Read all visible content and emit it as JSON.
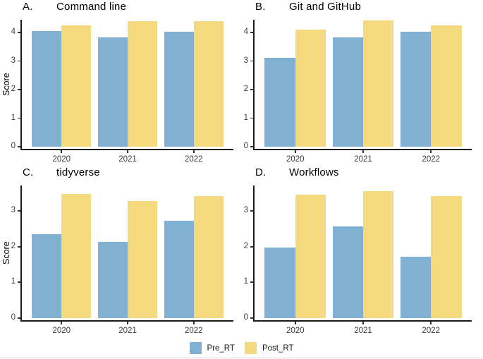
{
  "figure": {
    "colors": {
      "pre": "#80B1D3",
      "post": "#F4D97E",
      "axis": "#1A1A1A",
      "tick_text": "#3C3C3C"
    }
  },
  "chart_data": [
    {
      "type": "bar",
      "panel_label": "A.",
      "title": "Command line",
      "ylabel": "Score",
      "categories": [
        "2020",
        "2021",
        "2022"
      ],
      "series": [
        {
          "name": "Pre_RT",
          "values": [
            4.05,
            3.84,
            4.04
          ]
        },
        {
          "name": "Post_RT",
          "values": [
            4.25,
            4.41,
            4.41
          ]
        }
      ],
      "yticks": [
        0,
        1,
        2,
        3,
        4
      ],
      "ylim": [
        0,
        4.45
      ],
      "grid": false,
      "legend_position": "bottom-shared"
    },
    {
      "type": "bar",
      "panel_label": "B.",
      "title": "Git and GitHub",
      "ylabel": "",
      "categories": [
        "2020",
        "2021",
        "2022"
      ],
      "series": [
        {
          "name": "Pre_RT",
          "values": [
            3.12,
            3.84,
            4.04
          ]
        },
        {
          "name": "Post_RT",
          "values": [
            4.1,
            4.42,
            4.26
          ]
        }
      ],
      "yticks": [
        0,
        1,
        2,
        3,
        4
      ],
      "ylim": [
        0,
        4.45
      ],
      "grid": false,
      "legend_position": "bottom-shared"
    },
    {
      "type": "bar",
      "panel_label": "C.",
      "title": "tidyverse",
      "ylabel": "Score",
      "categories": [
        "2020",
        "2021",
        "2022"
      ],
      "series": [
        {
          "name": "Pre_RT",
          "values": [
            2.35,
            2.14,
            2.73
          ]
        },
        {
          "name": "Post_RT",
          "values": [
            3.48,
            3.29,
            3.43
          ]
        }
      ],
      "yticks": [
        0,
        1,
        2,
        3
      ],
      "ylim": [
        0,
        3.72
      ],
      "grid": false,
      "legend_position": "bottom-shared"
    },
    {
      "type": "bar",
      "panel_label": "D.",
      "title": "Workflows",
      "ylabel": "",
      "categories": [
        "2020",
        "2021",
        "2022"
      ],
      "series": [
        {
          "name": "Pre_RT",
          "values": [
            1.97,
            2.57,
            1.73
          ]
        },
        {
          "name": "Post_RT",
          "values": [
            3.46,
            3.57,
            3.42
          ]
        }
      ],
      "yticks": [
        0,
        1,
        2,
        3
      ],
      "ylim": [
        0,
        3.72
      ],
      "grid": false,
      "legend_position": "bottom-shared"
    }
  ],
  "legend": {
    "items": [
      {
        "label": "Pre_RT",
        "color": "#80B1D3"
      },
      {
        "label": "Post_RT",
        "color": "#F4D97E"
      }
    ]
  }
}
